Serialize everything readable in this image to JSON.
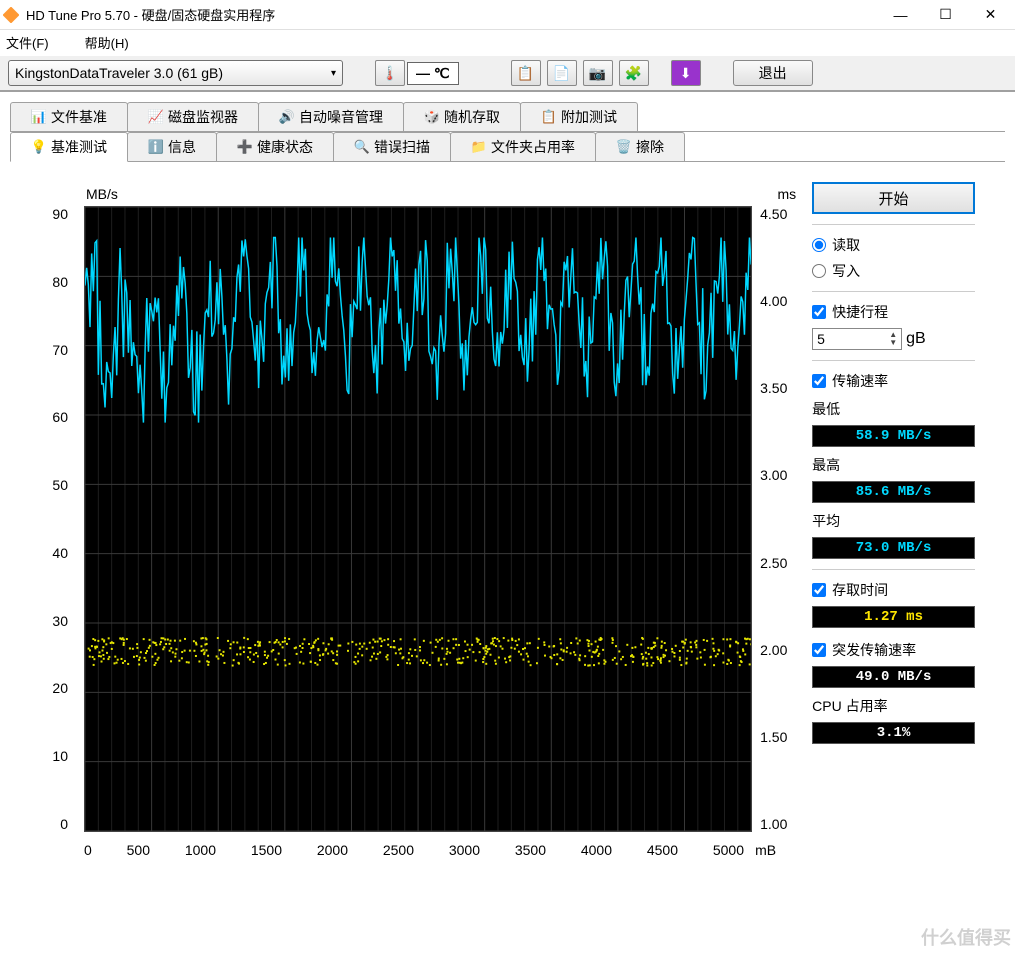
{
  "window": {
    "title": "HD Tune Pro 5.70 - 硬盘/固态硬盘实用程序"
  },
  "menu": {
    "file": "文件(F)",
    "help": "帮助(H)"
  },
  "toolbar": {
    "drive": "KingstonDataTraveler 3.0 (61 gB)",
    "temp_display": "— ℃",
    "exit": "退出"
  },
  "tabs_row1": [
    {
      "label": "文件基准",
      "icon": "📊"
    },
    {
      "label": "磁盘监视器",
      "icon": "📈"
    },
    {
      "label": "自动噪音管理",
      "icon": "🔊"
    },
    {
      "label": "随机存取",
      "icon": "🎲"
    },
    {
      "label": "附加测试",
      "icon": "📋"
    }
  ],
  "tabs_row2": [
    {
      "label": "基准测试",
      "icon": "💡",
      "active": true
    },
    {
      "label": "信息",
      "icon": "ℹ️"
    },
    {
      "label": "健康状态",
      "icon": "➕"
    },
    {
      "label": "错误扫描",
      "icon": "🔍"
    },
    {
      "label": "文件夹占用率",
      "icon": "📁"
    },
    {
      "label": "擦除",
      "icon": "🗑️"
    }
  ],
  "chart": {
    "y1_label": "MB/s",
    "y2_label": "ms",
    "x_label": "mB",
    "y1_ticks": [
      "90",
      "80",
      "70",
      "60",
      "50",
      "40",
      "30",
      "20",
      "10",
      "0"
    ],
    "y2_ticks": [
      "4.50",
      "4.00",
      "3.50",
      "3.00",
      "2.50",
      "2.00",
      "1.50",
      "1.00"
    ],
    "x_ticks": [
      "0",
      "500",
      "1000",
      "1500",
      "2000",
      "2500",
      "3000",
      "3500",
      "4000",
      "4500",
      "5000"
    ],
    "speed_color": "#00d8ff",
    "access_color": "#e6e600",
    "grid_color": "#3a3a3a",
    "minor_grid_color": "#1f1f1f",
    "background": "#000000",
    "speed_mean": 73.0,
    "speed_min": 58.9,
    "speed_max": 85.6,
    "access_mean": 1.27,
    "y1_range": [
      0,
      90
    ],
    "x_range": [
      0,
      5000
    ]
  },
  "controls": {
    "start": "开始",
    "read": "读取",
    "write": "写入",
    "shortstroke": "快捷行程",
    "shortstroke_value": "5",
    "shortstroke_unit": "gB",
    "transfer_rate": "传输速率",
    "min_label": "最低",
    "min_value": "58.9 MB/s",
    "max_label": "最高",
    "max_value": "85.6 MB/s",
    "avg_label": "平均",
    "avg_value": "73.0 MB/s",
    "access_label": "存取时间",
    "access_value": "1.27 ms",
    "burst_label": "突发传输速率",
    "burst_value": "49.0 MB/s",
    "cpu_label": "CPU 占用率",
    "cpu_value": "3.1%"
  },
  "watermark": "什么值得买"
}
